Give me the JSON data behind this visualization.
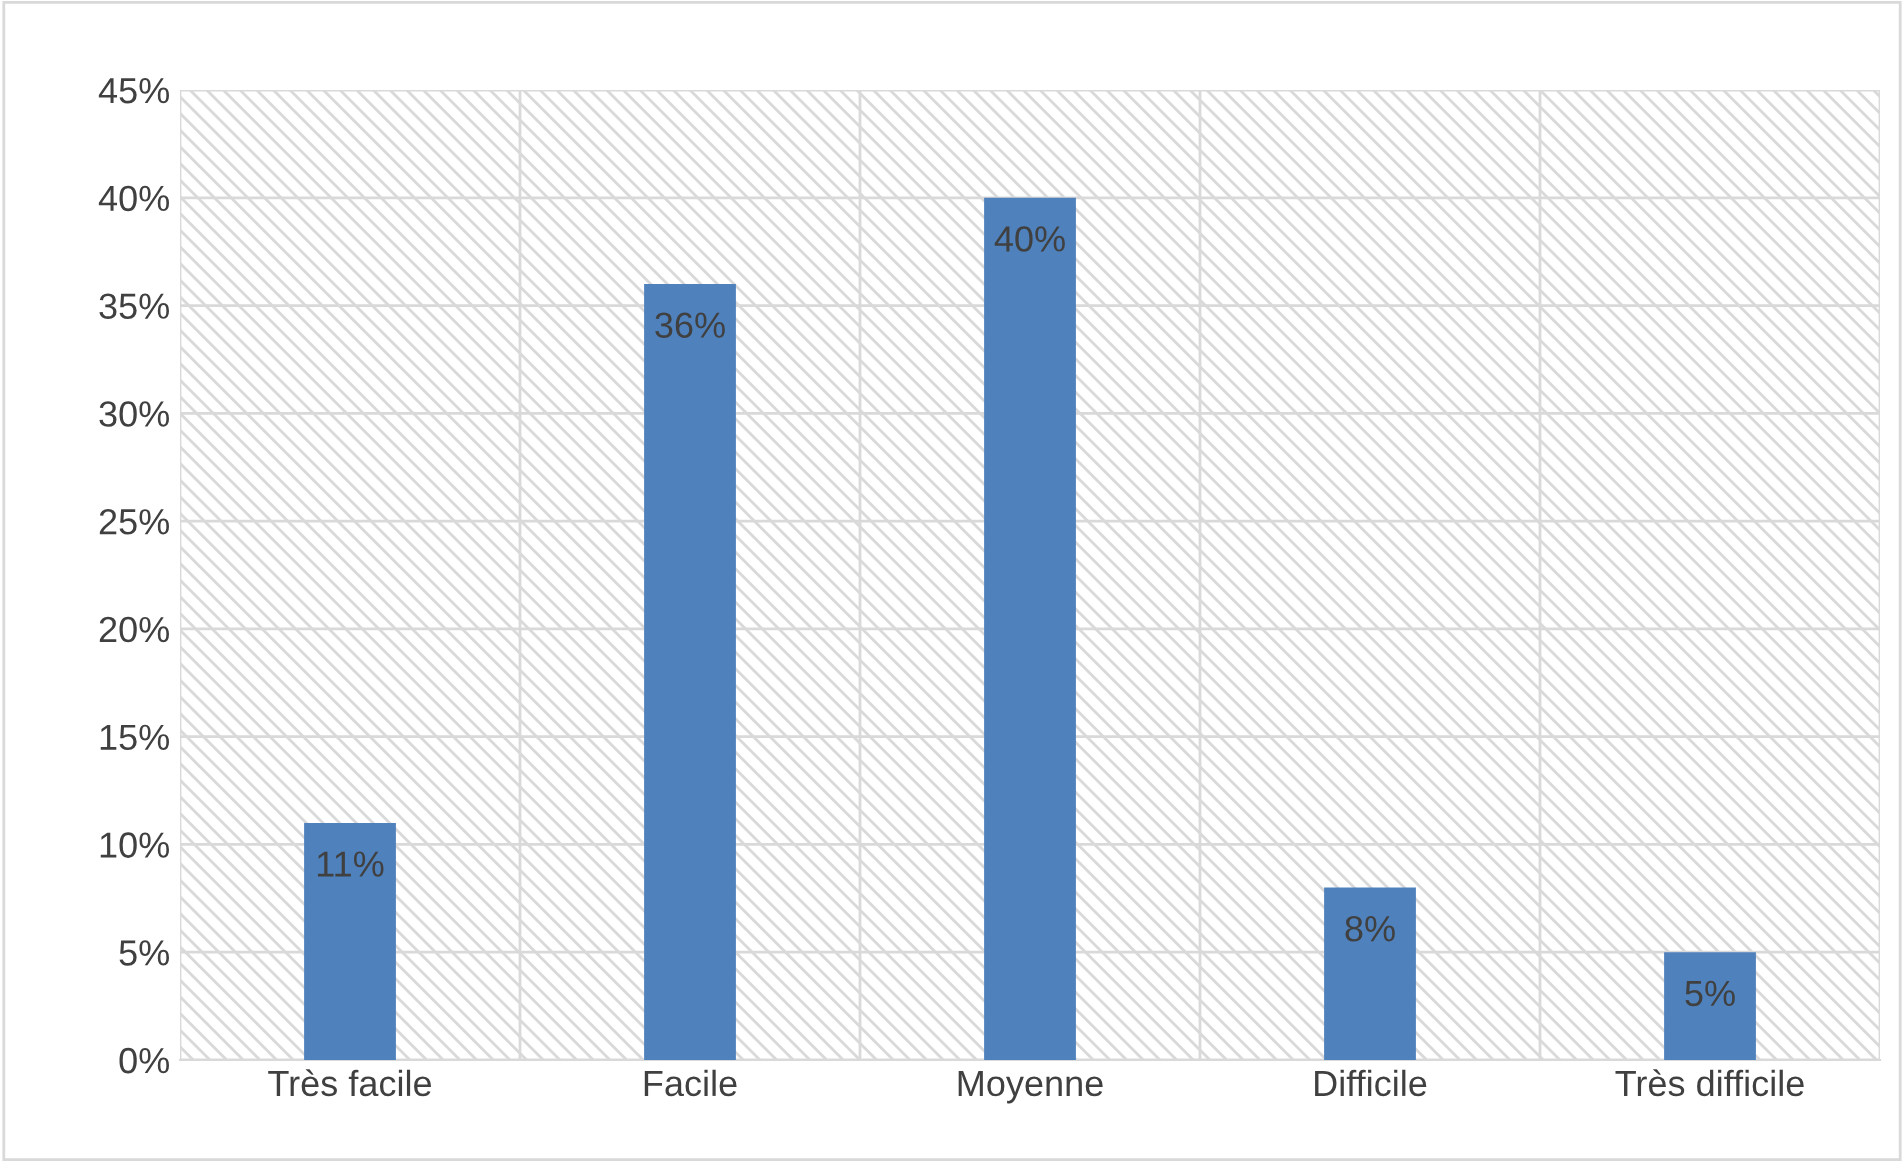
{
  "chart_data": {
    "type": "bar",
    "categories": [
      "Très facile",
      "Facile",
      "Moyenne",
      "Difficile",
      "Très difficile"
    ],
    "values": [
      11,
      36,
      40,
      8,
      5
    ],
    "color": "#4f81bd",
    "value_labels": [
      "11%",
      "36%",
      "40%",
      "8%",
      "5%"
    ],
    "ylim": [
      0,
      45
    ],
    "yticks": [
      {
        "value": 0,
        "label": "0%"
      },
      {
        "value": 5,
        "label": "5%"
      },
      {
        "value": 10,
        "label": "10%"
      },
      {
        "value": 15,
        "label": "15%"
      },
      {
        "value": 20,
        "label": "20%"
      },
      {
        "value": 25,
        "label": "25%"
      },
      {
        "value": 30,
        "label": "30%"
      },
      {
        "value": 35,
        "label": "35%"
      },
      {
        "value": 40,
        "label": "40%"
      },
      {
        "value": 45,
        "label": "45%"
      }
    ],
    "grid": true,
    "legend": false
  }
}
